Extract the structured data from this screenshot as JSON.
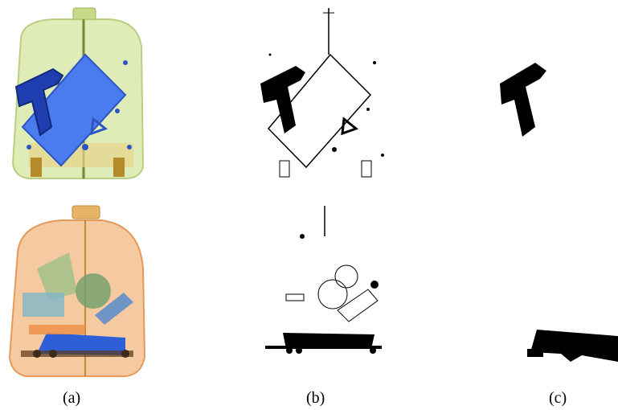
{
  "captions": {
    "a": "(a)",
    "b": "(b)",
    "c": "(c)"
  },
  "colors": {
    "luggage_green": "#cfe3a0",
    "luggage_orange": "#f3b07a",
    "item_blue": "#3d6fe0",
    "gun_dark_blue": "#1f3fb0",
    "ink_black": "#000000",
    "background": "#ffffff"
  }
}
